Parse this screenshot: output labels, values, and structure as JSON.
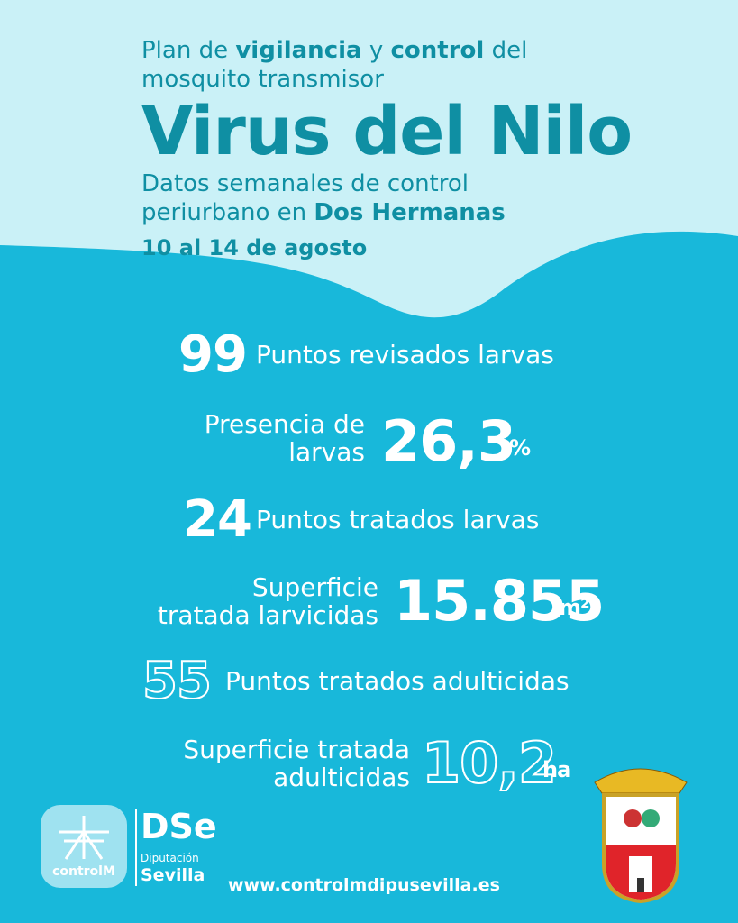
{
  "header": {
    "line1": [
      "Plan de ",
      "vigilancia",
      " y ",
      "control",
      " del"
    ],
    "line2": "mosquito transmisor",
    "title": "Virus del Nilo",
    "subtitle1": "Datos semanales de control",
    "subtitle2": [
      "periurbano en ",
      "Dos Hermanas"
    ],
    "date": "10 al 14 de agosto"
  },
  "stats": [
    {
      "number": "99",
      "label": [
        "Puntos revisados larvas"
      ],
      "unit": ""
    },
    {
      "number": "26,3",
      "label": [
        "Presencia de",
        "larvas"
      ],
      "unit": "%"
    },
    {
      "number": "24",
      "label": [
        "Puntos tratados larvas"
      ],
      "unit": ""
    },
    {
      "number": "15.855",
      "label": [
        "Superficie",
        "tratada larvicidas"
      ],
      "unit": "m²"
    },
    {
      "number": "55",
      "label": [
        "Puntos tratados adulticidas"
      ],
      "unit": ""
    },
    {
      "number": "10,2",
      "label": [
        "Superficie tratada",
        "adulticidas"
      ],
      "unit": "ha"
    }
  ],
  "footer": {
    "logo1": "controlM",
    "logo2_small": "Diputación",
    "logo2_big": "Sevilla",
    "url": "www.controlmdipusevilla.es"
  }
}
